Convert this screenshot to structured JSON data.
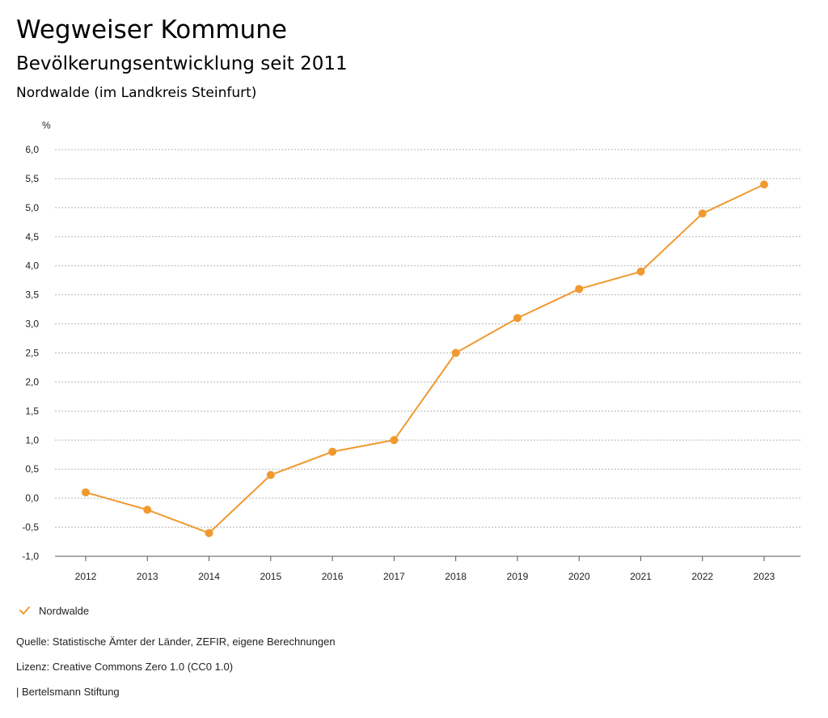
{
  "header": {
    "title": "Wegweiser Kommune",
    "subtitle": "Bevölkerungsentwicklung seit 2011",
    "region": "Nordwalde (im Landkreis Steinfurt)"
  },
  "chart_data": {
    "type": "line",
    "x": [
      "2012",
      "2013",
      "2014",
      "2015",
      "2016",
      "2017",
      "2018",
      "2019",
      "2020",
      "2021",
      "2022",
      "2023"
    ],
    "series": [
      {
        "name": "Nordwalde",
        "values": [
          0.1,
          -0.2,
          -0.6,
          0.4,
          0.8,
          1.0,
          2.5,
          3.1,
          3.6,
          3.9,
          4.9,
          5.4
        ],
        "color": "#F0992F"
      }
    ],
    "yunit": "%",
    "ylim": [
      -1.0,
      6.0
    ],
    "yticks": [
      "-1,0",
      "-0,5",
      "0,0",
      "0,5",
      "1,0",
      "1,5",
      "2,0",
      "2,5",
      "3,0",
      "3,5",
      "4,0",
      "4,5",
      "5,0",
      "5,5",
      "6,0"
    ],
    "grid": true,
    "legend_position": "bottom-left"
  },
  "footer": {
    "source": "Quelle: Statistische Ämter der Länder, ZEFIR, eigene Berechnungen",
    "license": "Lizenz: Creative Commons Zero 1.0 (CC0 1.0)",
    "publisher": "| Bertelsmann Stiftung"
  }
}
